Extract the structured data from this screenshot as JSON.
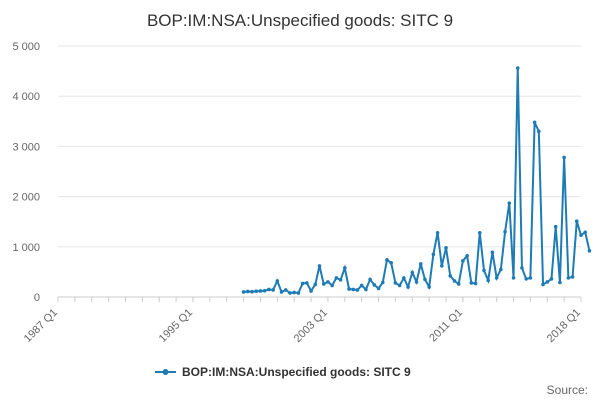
{
  "chart_data": {
    "type": "line",
    "title": "BOP:IM:NSA:Unspecified goods: SITC 9",
    "xlabel": "",
    "ylabel": "",
    "ylim": [
      0,
      5000
    ],
    "yticks": [
      0,
      1000,
      2000,
      3000,
      4000,
      5000
    ],
    "ytick_labels": [
      "0",
      "1 000",
      "2 000",
      "3 000",
      "4 000",
      "5 000"
    ],
    "xlim_quarters": [
      0,
      124
    ],
    "xticks": [
      {
        "q": 0,
        "label": "1987 Q1"
      },
      {
        "q": 32,
        "label": "1995 Q1"
      },
      {
        "q": 64,
        "label": "2003 Q1"
      },
      {
        "q": 96,
        "label": "2011 Q1"
      },
      {
        "q": 124,
        "label": "2018 Q1"
      }
    ],
    "series": [
      {
        "name": "BOP:IM:NSA:Unspecified goods: SITC 9",
        "color": "#1f7bb5",
        "start_quarter": 44,
        "values": [
          100,
          110,
          105,
          115,
          120,
          125,
          150,
          140,
          320,
          100,
          140,
          80,
          90,
          80,
          270,
          280,
          120,
          250,
          620,
          260,
          300,
          230,
          380,
          340,
          580,
          160,
          150,
          140,
          230,
          150,
          350,
          240,
          170,
          290,
          740,
          680,
          280,
          230,
          380,
          200,
          490,
          300,
          660,
          350,
          200,
          850,
          1280,
          620,
          980,
          420,
          320,
          260,
          720,
          820,
          280,
          270,
          1280,
          530,
          330,
          890,
          380,
          550,
          1300,
          1870,
          380,
          4560,
          580,
          360,
          380,
          3480,
          3300,
          250,
          300,
          360,
          1400,
          290,
          2780,
          380,
          400,
          1510,
          1230,
          1290,
          920
        ]
      }
    ],
    "legend": {
      "label": "BOP:IM:NSA:Unspecified goods: SITC 9",
      "position": "bottom-center"
    },
    "source_text": "Source:"
  }
}
